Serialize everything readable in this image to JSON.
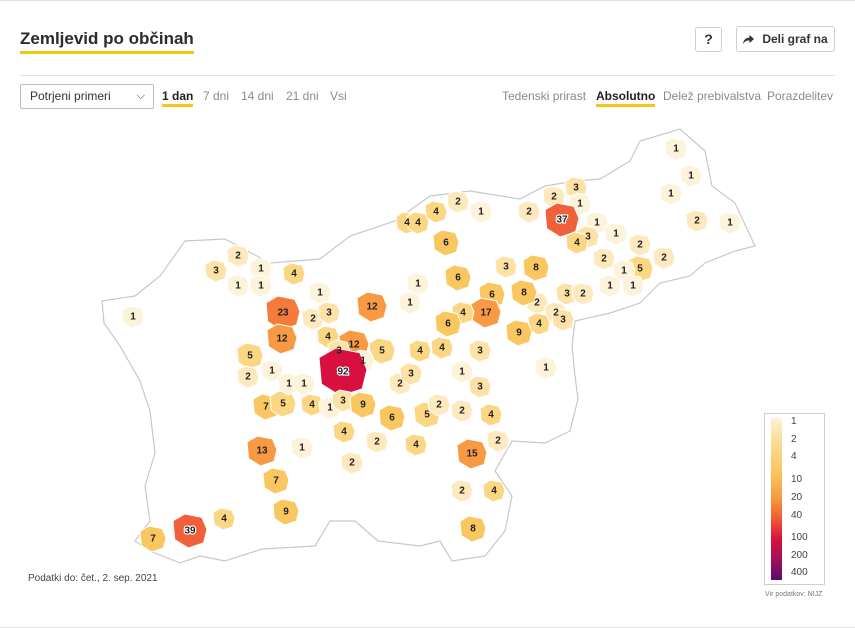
{
  "header": {
    "title": "Zemljevid po občinah",
    "help_label": "?",
    "share_label": "Deli graf na"
  },
  "filters": {
    "select_value": "Potrjeni primeri",
    "ranges": [
      "1 dan",
      "7 dni",
      "14 dni",
      "21 dni",
      "Vsi"
    ],
    "active_range": "1 dan",
    "modes": [
      "Tedenski prirast",
      "Absolutno",
      "Delež prebivalstva",
      "Porazdelitev"
    ],
    "active_mode": "Absolutno"
  },
  "map_values": [
    "1",
    "1",
    "3",
    "2",
    "1",
    "1",
    "2",
    "4",
    "1",
    "2",
    "4",
    "4",
    "2",
    "1",
    "37",
    "1",
    "3",
    "1",
    "6",
    "4",
    "2",
    "2",
    "1",
    "2",
    "5",
    "1",
    "2",
    "3",
    "1",
    "4",
    "3",
    "1",
    "1",
    "8",
    "6",
    "6",
    "3",
    "2",
    "1",
    "1",
    "1",
    "23",
    "2",
    "3",
    "12",
    "1",
    "17",
    "2",
    "2",
    "8",
    "1",
    "12",
    "4",
    "9",
    "3",
    "4",
    "6",
    "4",
    "5",
    "3",
    "3",
    "12",
    "5",
    "4",
    "4",
    "1",
    "1",
    "92",
    "1",
    "2",
    "2",
    "3",
    "1",
    "3",
    "7",
    "5",
    "4",
    "1",
    "3",
    "9",
    "6",
    "5",
    "2",
    "2",
    "4",
    "1",
    "1",
    "4",
    "2",
    "13",
    "1",
    "2",
    "4",
    "15",
    "2",
    "7",
    "2",
    "4",
    "9",
    "8",
    "4",
    "39",
    "7"
  ],
  "footnote": "Podatki do: čet., 2. sep. 2021",
  "legend": {
    "ticks": [
      "1",
      "2",
      "4",
      "10",
      "20",
      "40",
      "100",
      "200",
      "400"
    ]
  },
  "source": "Vir podatkov: NIJZ",
  "colors": {
    "accent": "#f5c518",
    "low": "#fdf1d8",
    "mid": "#f9cc66",
    "high": "#f47b3a",
    "vhigh": "#d7103f",
    "max": "#5b0a6e"
  }
}
